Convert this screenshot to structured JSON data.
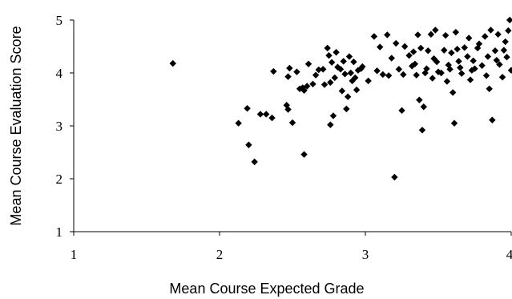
{
  "chart_data": {
    "type": "scatter",
    "title": "",
    "xlabel": "Mean Course Expected Grade",
    "ylabel": "Mean Course Evaluation Score",
    "xlim": [
      1,
      4
    ],
    "ylim": [
      1,
      5
    ],
    "xticks": [
      1,
      2,
      3,
      4
    ],
    "yticks": [
      1,
      2,
      3,
      4,
      5
    ],
    "grid": false,
    "legend": "none",
    "marker": "diamond",
    "marker_color": "#000000",
    "points": [
      [
        1.68,
        4.18
      ],
      [
        2.13,
        3.05
      ],
      [
        2.19,
        3.33
      ],
      [
        2.2,
        2.64
      ],
      [
        2.24,
        2.32
      ],
      [
        2.28,
        3.22
      ],
      [
        2.32,
        3.22
      ],
      [
        2.36,
        3.15
      ],
      [
        2.37,
        4.03
      ],
      [
        2.46,
        3.39
      ],
      [
        2.47,
        3.31
      ],
      [
        2.47,
        3.93
      ],
      [
        2.48,
        4.09
      ],
      [
        2.5,
        3.06
      ],
      [
        2.53,
        4.02
      ],
      [
        2.57,
        3.72
      ],
      [
        2.58,
        2.46
      ],
      [
        2.58,
        3.67
      ],
      [
        2.6,
        3.75
      ],
      [
        2.61,
        4.17
      ],
      [
        2.66,
        3.96
      ],
      [
        2.68,
        4.06
      ],
      [
        2.72,
        3.78
      ],
      [
        2.74,
        4.47
      ],
      [
        2.75,
        4.33
      ],
      [
        2.76,
        3.02
      ],
      [
        2.76,
        3.82
      ],
      [
        2.77,
        4.2
      ],
      [
        2.78,
        3.19
      ],
      [
        2.8,
        4.39
      ],
      [
        2.81,
        4.11
      ],
      [
        2.83,
        4.07
      ],
      [
        2.84,
        3.66
      ],
      [
        2.85,
        4.22
      ],
      [
        2.87,
        3.32
      ],
      [
        2.88,
        3.55
      ],
      [
        2.89,
        4.31
      ],
      [
        2.9,
        4.0
      ],
      [
        2.92,
        4.21
      ],
      [
        2.93,
        3.91
      ],
      [
        2.94,
        3.68
      ],
      [
        2.95,
        4.05
      ],
      [
        2.97,
        4.08
      ],
      [
        3.06,
        4.69
      ],
      [
        3.08,
        4.04
      ],
      [
        3.12,
        3.97
      ],
      [
        3.15,
        4.72
      ],
      [
        3.16,
        3.95
      ],
      [
        3.2,
        2.03
      ],
      [
        3.21,
        4.56
      ],
      [
        3.23,
        4.07
      ],
      [
        3.25,
        3.29
      ],
      [
        3.27,
        4.5
      ],
      [
        3.3,
        4.33
      ],
      [
        3.32,
        4.13
      ],
      [
        3.33,
        4.4
      ],
      [
        3.35,
        3.96
      ],
      [
        3.36,
        4.72
      ],
      [
        3.37,
        3.49
      ],
      [
        3.38,
        4.47
      ],
      [
        3.39,
        2.92
      ],
      [
        3.4,
        3.36
      ],
      [
        3.42,
        4.08
      ],
      [
        3.43,
        4.42
      ],
      [
        3.45,
        4.73
      ],
      [
        3.46,
        3.9
      ],
      [
        3.48,
        4.81
      ],
      [
        3.49,
        4.21
      ],
      [
        3.5,
        4.02
      ],
      [
        3.52,
        4.0
      ],
      [
        3.54,
        4.43
      ],
      [
        3.55,
        4.71
      ],
      [
        3.57,
        4.15
      ],
      [
        3.58,
        4.07
      ],
      [
        3.59,
        4.38
      ],
      [
        3.6,
        3.63
      ],
      [
        3.61,
        3.05
      ],
      [
        3.62,
        4.77
      ],
      [
        3.63,
        4.45
      ],
      [
        3.65,
        4.1
      ],
      [
        3.66,
        3.99
      ],
      [
        3.68,
        4.48
      ],
      [
        3.7,
        4.31
      ],
      [
        3.71,
        4.66
      ],
      [
        3.72,
        3.87
      ],
      [
        3.74,
        4.23
      ],
      [
        3.75,
        4.08
      ],
      [
        3.77,
        4.47
      ],
      [
        3.78,
        4.55
      ],
      [
        3.8,
        4.14
      ],
      [
        3.82,
        4.69
      ],
      [
        3.84,
        4.31
      ],
      [
        3.85,
        3.7
      ],
      [
        3.86,
        4.81
      ],
      [
        3.87,
        3.11
      ],
      [
        3.89,
        4.42
      ],
      [
        3.91,
        4.73
      ],
      [
        3.92,
        4.16
      ],
      [
        3.94,
        3.92
      ],
      [
        3.96,
        4.59
      ],
      [
        3.97,
        4.3
      ],
      [
        3.98,
        4.8
      ],
      [
        3.99,
        5.0
      ],
      [
        4.0,
        4.05
      ],
      [
        3.95,
        4.43
      ],
      [
        3.9,
        4.24
      ],
      [
        3.83,
        3.95
      ],
      [
        3.73,
        4.05
      ],
      [
        3.64,
        4.22
      ],
      [
        3.56,
        3.84
      ],
      [
        3.47,
        4.27
      ],
      [
        3.41,
        4.0
      ],
      [
        3.34,
        4.17
      ],
      [
        3.26,
        3.97
      ],
      [
        3.18,
        4.28
      ],
      [
        3.1,
        4.49
      ],
      [
        3.02,
        3.85
      ],
      [
        2.98,
        4.12
      ],
      [
        2.91,
        3.85
      ],
      [
        2.86,
        3.98
      ],
      [
        2.79,
        3.91
      ],
      [
        2.71,
        4.07
      ],
      [
        2.64,
        3.79
      ],
      [
        2.55,
        3.7
      ]
    ]
  }
}
